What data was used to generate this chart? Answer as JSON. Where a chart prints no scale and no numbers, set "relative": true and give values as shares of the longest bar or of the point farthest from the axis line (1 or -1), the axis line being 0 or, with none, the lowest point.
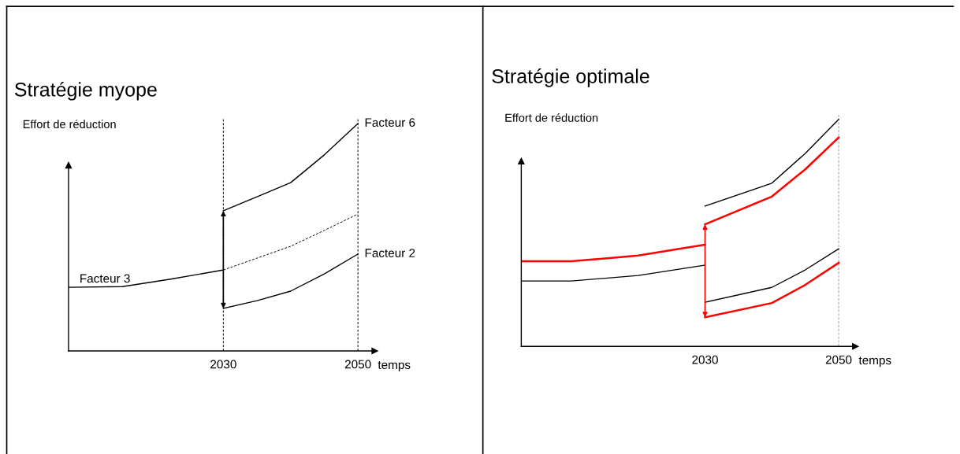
{
  "chart_data": [
    {
      "type": "line",
      "title": "Stratégie myope",
      "ylabel": "Effort de réduction",
      "xlabel": "temps",
      "relative": true,
      "xlim": [
        2007,
        2052.5
      ],
      "xticks": [
        2030,
        2050
      ],
      "tick_labels": "x",
      "grid": false,
      "legend": false,
      "marker": "none",
      "ref_lines": [
        {
          "axis": "x",
          "value": 2030,
          "line_style": "dashed",
          "color": "#000000"
        },
        {
          "axis": "x",
          "value": 2050,
          "line_style": "dashed",
          "color": "#000000"
        }
      ],
      "series": [
        {
          "name": "Facteur 3",
          "color": "#000000",
          "x": [
            2007,
            2015,
            2022,
            2030
          ],
          "values": [
            0.28,
            0.283,
            0.315,
            0.356
          ]
        },
        {
          "color": "#000000",
          "line_style": "dashed",
          "x": [
            2030,
            2035,
            2040,
            2045,
            2050
          ],
          "values": [
            0.356,
            0.408,
            0.46,
            0.53,
            0.602
          ]
        },
        {
          "name": "Facteur 6",
          "color": "#000000",
          "x": [
            2030,
            2035,
            2040,
            2045,
            2050
          ],
          "values": [
            0.616,
            0.678,
            0.74,
            0.862,
            1.0
          ]
        },
        {
          "name": "Facteur 2",
          "color": "#000000",
          "x": [
            2030,
            2035,
            2040,
            2045,
            2050
          ],
          "values": [
            0.187,
            0.221,
            0.263,
            0.339,
            0.426
          ]
        }
      ]
    },
    {
      "type": "line",
      "title": "Stratégie optimale",
      "ylabel": "Effort de réduction",
      "xlabel": "temps",
      "relative": true,
      "xlim": [
        2002.5,
        2052.5
      ],
      "xticks": [
        2030,
        2050
      ],
      "tick_labels": "x",
      "grid": false,
      "legend": false,
      "marker": "none",
      "ref_lines": [
        {
          "axis": "x",
          "value": 2050,
          "line_style": "dashed",
          "color": "#999999"
        }
      ],
      "series": [
        {
          "color": "#000000",
          "x": [
            2002.5,
            2010,
            2020,
            2030
          ],
          "values": [
            0.288,
            0.288,
            0.3125,
            0.358
          ]
        },
        {
          "color": "#ff0000",
          "x": [
            2002.5,
            2010,
            2020,
            2030
          ],
          "values": [
            0.375,
            0.375,
            0.4,
            0.448
          ]
        },
        {
          "color": "#000000",
          "x": [
            2030,
            2040,
            2045,
            2050
          ],
          "values": [
            0.618,
            0.719,
            0.85,
            1.0
          ]
        },
        {
          "color": "#ff0000",
          "x": [
            2030,
            2040,
            2045,
            2050
          ],
          "values": [
            0.538,
            0.66,
            0.78,
            0.92
          ]
        },
        {
          "color": "#000000",
          "x": [
            2030,
            2040,
            2045,
            2050
          ],
          "values": [
            0.194,
            0.26,
            0.337,
            0.43
          ]
        },
        {
          "color": "#ff0000",
          "x": [
            2030,
            2040,
            2045,
            2050
          ],
          "values": [
            0.128,
            0.191,
            0.271,
            0.368
          ]
        }
      ]
    }
  ]
}
